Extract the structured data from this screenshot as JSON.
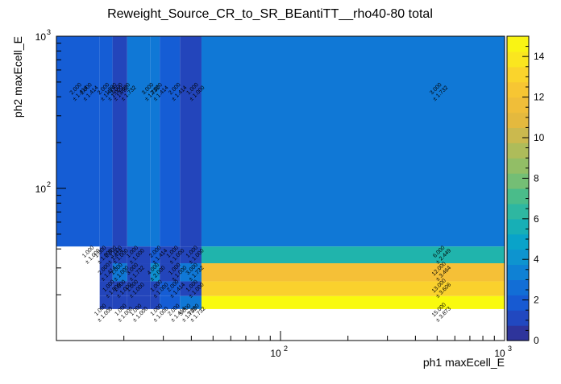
{
  "chart_data": {
    "type": "heatmap",
    "title": "Reweight_Source_CR_to_SR_BEantiTT__rho40-80 total",
    "xlabel": "ph1 maxEcell_E",
    "ylabel": "ph2 maxEcell_E",
    "x_scale": "log",
    "y_scale": "log",
    "xlim": [
      10,
      1000
    ],
    "ylim": [
      10,
      1000
    ],
    "x_ticks": [
      {
        "value": 100,
        "label": "10",
        "exp": "2"
      },
      {
        "value": 1000,
        "label": "10",
        "exp": "3"
      }
    ],
    "y_ticks": [
      {
        "value": 100,
        "label": "10",
        "exp": "2"
      },
      {
        "value": 1000,
        "label": "10",
        "exp": "3"
      }
    ],
    "colorbar": {
      "min": 0,
      "max": 15,
      "ticks": [
        "0",
        "2",
        "4",
        "6",
        "8",
        "10",
        "12",
        "14"
      ]
    },
    "x_edges": [
      10,
      15.6,
      17.8,
      20.7,
      26.3,
      28.9,
      35.6,
      44.4,
      1000
    ],
    "y_edges": [
      10,
      13.3,
      16.1,
      19.6,
      24.5,
      32.2,
      41.5,
      1000
    ],
    "cells": [
      {
        "ix": 0,
        "iy": 6,
        "value": 2.0
      },
      {
        "ix": 1,
        "iy": 6,
        "value": 2.0
      },
      {
        "ix": 2,
        "iy": 6,
        "value": 1.0
      },
      {
        "ix": 3,
        "iy": 6,
        "value": 3.0
      },
      {
        "ix": 4,
        "iy": 6,
        "value": 3.0
      },
      {
        "ix": 5,
        "iy": 6,
        "value": 2.0
      },
      {
        "ix": 6,
        "iy": 6,
        "value": 1.0
      },
      {
        "ix": 7,
        "iy": 6,
        "value": 3.0
      },
      {
        "ix": 1,
        "iy": 5,
        "value": 1.0
      },
      {
        "ix": 2,
        "iy": 5,
        "value": 1.0
      },
      {
        "ix": 3,
        "iy": 5,
        "value": 1.0
      },
      {
        "ix": 4,
        "iy": 5,
        "value": 2.0
      },
      {
        "ix": 5,
        "iy": 5,
        "value": 1.0
      },
      {
        "ix": 6,
        "iy": 5,
        "value": 1.0
      },
      {
        "ix": 7,
        "iy": 5,
        "value": 6.0
      },
      {
        "ix": 1,
        "iy": 4,
        "value": 1.0
      },
      {
        "ix": 2,
        "iy": 4,
        "value": 3.0
      },
      {
        "ix": 3,
        "iy": 4,
        "value": 1.0
      },
      {
        "ix": 4,
        "iy": 4,
        "value": 4.0
      },
      {
        "ix": 5,
        "iy": 4,
        "value": 1.0
      },
      {
        "ix": 6,
        "iy": 4,
        "value": 3.0
      },
      {
        "ix": 7,
        "iy": 4,
        "value": 12.0
      },
      {
        "ix": 1,
        "iy": 3,
        "value": 1.0
      },
      {
        "ix": 2,
        "iy": 3,
        "value": 1.0
      },
      {
        "ix": 3,
        "iy": 3,
        "value": 1.0
      },
      {
        "ix": 4,
        "iy": 3,
        "value": 1.0
      },
      {
        "ix": 5,
        "iy": 3,
        "value": 2.0
      },
      {
        "ix": 6,
        "iy": 3,
        "value": 1.0
      },
      {
        "ix": 7,
        "iy": 3,
        "value": 13.0
      },
      {
        "ix": 1,
        "iy": 2,
        "value": 1.0
      },
      {
        "ix": 2,
        "iy": 2,
        "value": 1.0
      },
      {
        "ix": 3,
        "iy": 2,
        "value": 1.0
      },
      {
        "ix": 4,
        "iy": 2,
        "value": 1.0
      },
      {
        "ix": 5,
        "iy": 2,
        "value": 2.0
      },
      {
        "ix": 6,
        "iy": 2,
        "value": 3.0
      },
      {
        "ix": 7,
        "iy": 2,
        "value": 15.0
      }
    ],
    "labels": [
      {
        "x": 12.4,
        "y": 440,
        "l1": "2.000",
        "l2": "± 1.414"
      },
      {
        "x": 13.8,
        "y": 440,
        "l1": "2.000",
        "l2": "± 1.414"
      },
      {
        "x": 16.5,
        "y": 440,
        "l1": "2.000",
        "l2": "± 1.414"
      },
      {
        "x": 17.8,
        "y": 440,
        "l1": "1.000",
        "l2": "± 1.000"
      },
      {
        "x": 18.9,
        "y": 440,
        "l1": "3.000",
        "l2": "± 1.732"
      },
      {
        "x": 20.4,
        "y": 440,
        "l1": "3.000",
        "l2": "± 1.732"
      },
      {
        "x": 26.0,
        "y": 440,
        "l1": "3.000",
        "l2": "± 1.732"
      },
      {
        "x": 28.4,
        "y": 440,
        "l1": "2.000",
        "l2": "± 1.414"
      },
      {
        "x": 34.3,
        "y": 440,
        "l1": "2.000",
        "l2": "± 1.414"
      },
      {
        "x": 41.2,
        "y": 440,
        "l1": "1.000",
        "l2": "± 1.000"
      },
      {
        "x": 502,
        "y": 440,
        "l1": "3.000",
        "l2": "± 1.732"
      },
      {
        "x": 14.1,
        "y": 37.3,
        "l1": "1.000",
        "l2": "± 1.000"
      },
      {
        "x": 16.0,
        "y": 37.3,
        "l1": "1.000",
        "l2": "± 1.000"
      },
      {
        "x": 17.8,
        "y": 37.3,
        "l1": "2.000",
        "l2": "± 1.414"
      },
      {
        "x": 18.8,
        "y": 37.3,
        "l1": "1.000",
        "l2": "± 1.000"
      },
      {
        "x": 22.2,
        "y": 37.3,
        "l1": "1.000",
        "l2": "± 1.000"
      },
      {
        "x": 28.1,
        "y": 37.3,
        "l1": "2.000",
        "l2": "± 1.414"
      },
      {
        "x": 33.5,
        "y": 37.3,
        "l1": "1.000",
        "l2": "± 1.000"
      },
      {
        "x": 40.9,
        "y": 37.3,
        "l1": "1.000",
        "l2": "± 1.000"
      },
      {
        "x": 518,
        "y": 37.3,
        "l1": "6.000",
        "l2": "± 2.449"
      },
      {
        "x": 16.6,
        "y": 28.8,
        "l1": "2.000",
        "l2": "± 1.414"
      },
      {
        "x": 18.9,
        "y": 28.8,
        "l1": "1.000",
        "l2": "± 1.000"
      },
      {
        "x": 22.2,
        "y": 28.8,
        "l1": "3.000",
        "l2": "± 1.732"
      },
      {
        "x": 27.5,
        "y": 28.8,
        "l1": "4.000",
        "l2": "± 2.000"
      },
      {
        "x": 34.3,
        "y": 28.8,
        "l1": "1.000",
        "l2": "± 1.000"
      },
      {
        "x": 40.9,
        "y": 28.8,
        "l1": "3.000",
        "l2": "± 1.732"
      },
      {
        "x": 518,
        "y": 28.8,
        "l1": "12.000",
        "l2": "± 3.464"
      },
      {
        "x": 17.4,
        "y": 22.3,
        "l1": "1.000",
        "l2": "± 1.000"
      },
      {
        "x": 19.5,
        "y": 22.3,
        "l1": "1.000",
        "l2": "± 1.000"
      },
      {
        "x": 22.2,
        "y": 22.3,
        "l1": "1.000",
        "l2": "± 1.000"
      },
      {
        "x": 28.4,
        "y": 22.3,
        "l1": "1.000",
        "l2": "± 1.000"
      },
      {
        "x": 33.7,
        "y": 22.3,
        "l1": "2.000",
        "l2": "± 1.414"
      },
      {
        "x": 40.9,
        "y": 22.3,
        "l1": "1.000",
        "l2": "± 1.000"
      },
      {
        "x": 518,
        "y": 22.3,
        "l1": "13.000",
        "l2": "± 3.606"
      },
      {
        "x": 16.0,
        "y": 15.5,
        "l1": "1.000",
        "l2": "± 1.000"
      },
      {
        "x": 19.7,
        "y": 15.5,
        "l1": "1.000",
        "l2": "± 1.000"
      },
      {
        "x": 23.0,
        "y": 15.5,
        "l1": "1.000",
        "l2": "± 1.000"
      },
      {
        "x": 28.4,
        "y": 15.5,
        "l1": "1.000",
        "l2": "± 1.000"
      },
      {
        "x": 34.0,
        "y": 15.5,
        "l1": "2.000",
        "l2": "± 1.414"
      },
      {
        "x": 38.1,
        "y": 15.5,
        "l1": "3.000",
        "l2": "± 1.732"
      },
      {
        "x": 41.5,
        "y": 15.5,
        "l1": "3.000",
        "l2": "± 1.732"
      },
      {
        "x": 518,
        "y": 15.5,
        "l1": "15.000",
        "l2": "± 3.873"
      }
    ]
  }
}
